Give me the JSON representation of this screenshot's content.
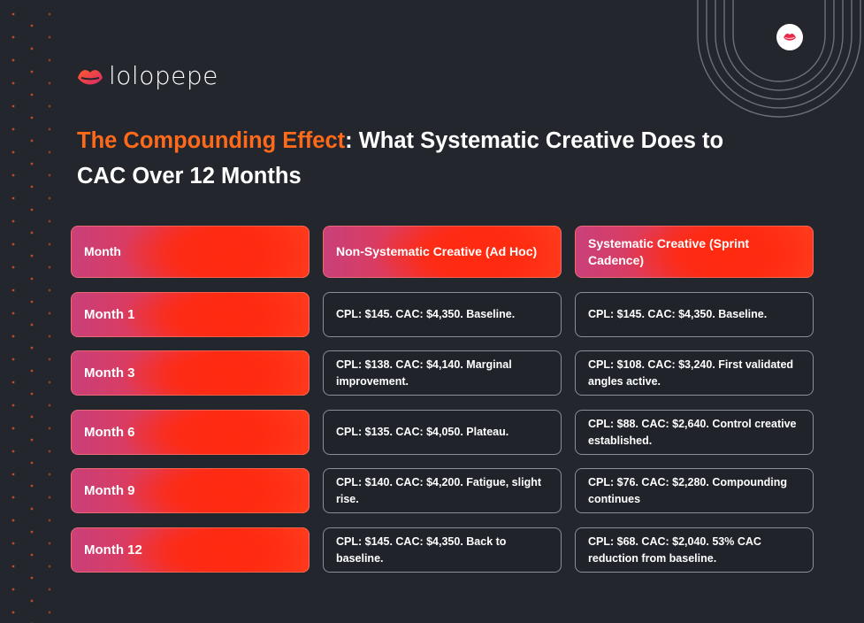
{
  "brand": {
    "name": "lolopepe",
    "accent_color": "#ff6a1a",
    "gradient_start": "#c9407a",
    "gradient_end": "#ff2b12",
    "background": "#23262d",
    "logo_icon": "lips-icon"
  },
  "title": {
    "accent": "The Compounding Effect",
    "rest": ": What Systematic Creative Does to CAC Over 12 Months"
  },
  "table": {
    "headers": [
      "Month",
      "Non-Systematic Creative (Ad Hoc)",
      "Systematic Creative (Sprint Cadence)"
    ],
    "rows": [
      {
        "month": "Month 1",
        "adhoc": "CPL: $145. CAC: $4,350. Baseline.",
        "systematic": "CPL: $145. CAC: $4,350. Baseline."
      },
      {
        "month": "Month 3",
        "adhoc": "CPL: $138. CAC: $4,140. Marginal improvement.",
        "systematic": "CPL: $108. CAC: $3,240. First validated angles active."
      },
      {
        "month": "Month 6",
        "adhoc": "CPL: $135. CAC: $4,050. Plateau.",
        "systematic": "CPL: $88. CAC: $2,640. Control creative established."
      },
      {
        "month": "Month 9",
        "adhoc": "CPL: $140. CAC: $4,200. Fatigue, slight rise.",
        "systematic": "CPL: $76. CAC: $2,280. Compounding continues"
      },
      {
        "month": "Month 12",
        "adhoc": "CPL: $145. CAC: $4,350. Back to baseline.",
        "systematic": "CPL: $68. CAC: $2,040. 53% CAC reduction from baseline."
      }
    ]
  }
}
